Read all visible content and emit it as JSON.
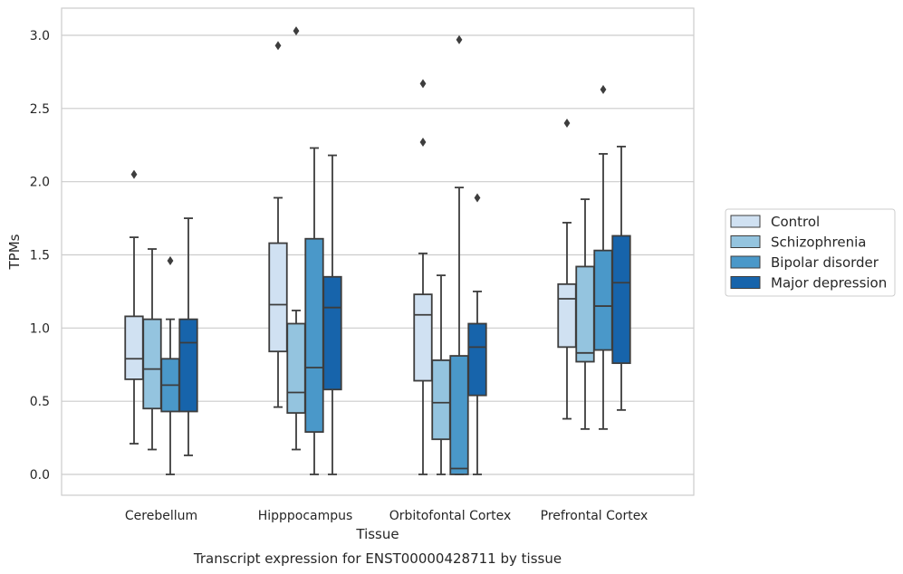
{
  "chart_data": {
    "type": "box",
    "xlabel": "Tissue",
    "ylabel": "TPMs",
    "caption": "Transcript expression for ENST00000428711 by tissue",
    "ylim": [
      -0.15,
      3.2
    ],
    "yticks": [
      "0.0",
      "0.5",
      "1.0",
      "1.5",
      "2.0",
      "2.5",
      "3.0"
    ],
    "grid": true,
    "legend_position": "right",
    "categories": [
      "Cerebellum",
      "Hipppocampus",
      "Orbitofontal Cortex",
      "Prefrontal Cortex"
    ],
    "series": [
      {
        "name": "Control",
        "color": "#d0e1f2",
        "boxes": [
          {
            "whisker_low": 0.21,
            "q1": 0.65,
            "median": 0.79,
            "q3": 1.08,
            "whisker_high": 1.62,
            "outliers": [
              2.05
            ]
          },
          {
            "whisker_low": 0.46,
            "q1": 0.84,
            "median": 1.16,
            "q3": 1.58,
            "whisker_high": 1.89,
            "outliers": [
              2.93
            ]
          },
          {
            "whisker_low": 0.0,
            "q1": 0.64,
            "median": 1.09,
            "q3": 1.23,
            "whisker_high": 1.51,
            "outliers": [
              2.27,
              2.67
            ]
          },
          {
            "whisker_low": 0.38,
            "q1": 0.87,
            "median": 1.2,
            "q3": 1.3,
            "whisker_high": 1.72,
            "outliers": [
              2.4
            ]
          }
        ]
      },
      {
        "name": "Schizophrenia",
        "color": "#94c4df",
        "boxes": [
          {
            "whisker_low": 0.17,
            "q1": 0.45,
            "median": 0.72,
            "q3": 1.06,
            "whisker_high": 1.54,
            "outliers": []
          },
          {
            "whisker_low": 0.17,
            "q1": 0.42,
            "median": 0.56,
            "q3": 1.03,
            "whisker_high": 1.12,
            "outliers": [
              3.03
            ]
          },
          {
            "whisker_low": 0.0,
            "q1": 0.24,
            "median": 0.49,
            "q3": 0.78,
            "whisker_high": 1.36,
            "outliers": []
          },
          {
            "whisker_low": 0.31,
            "q1": 0.77,
            "median": 0.83,
            "q3": 1.42,
            "whisker_high": 1.88,
            "outliers": []
          }
        ]
      },
      {
        "name": "Bipolar disorder",
        "color": "#4a98c9",
        "boxes": [
          {
            "whisker_low": 0.0,
            "q1": 0.43,
            "median": 0.61,
            "q3": 0.79,
            "whisker_high": 1.06,
            "outliers": [
              1.46
            ]
          },
          {
            "whisker_low": 0.0,
            "q1": 0.29,
            "median": 0.73,
            "q3": 1.61,
            "whisker_high": 2.23,
            "outliers": []
          },
          {
            "whisker_low": 0.0,
            "q1": 0.0,
            "median": 0.04,
            "q3": 0.81,
            "whisker_high": 1.96,
            "outliers": [
              2.97
            ]
          },
          {
            "whisker_low": 0.31,
            "q1": 0.85,
            "median": 1.15,
            "q3": 1.53,
            "whisker_high": 2.19,
            "outliers": [
              2.63
            ]
          }
        ]
      },
      {
        "name": "Major depression",
        "color": "#1764ab",
        "boxes": [
          {
            "whisker_low": 0.13,
            "q1": 0.43,
            "median": 0.9,
            "q3": 1.06,
            "whisker_high": 1.75,
            "outliers": []
          },
          {
            "whisker_low": 0.0,
            "q1": 0.58,
            "median": 1.14,
            "q3": 1.35,
            "whisker_high": 2.18,
            "outliers": []
          },
          {
            "whisker_low": 0.0,
            "q1": 0.54,
            "median": 0.87,
            "q3": 1.03,
            "whisker_high": 1.25,
            "outliers": [
              1.89
            ]
          },
          {
            "whisker_low": 0.44,
            "q1": 0.76,
            "median": 1.31,
            "q3": 1.63,
            "whisker_high": 2.24,
            "outliers": []
          }
        ]
      }
    ]
  }
}
